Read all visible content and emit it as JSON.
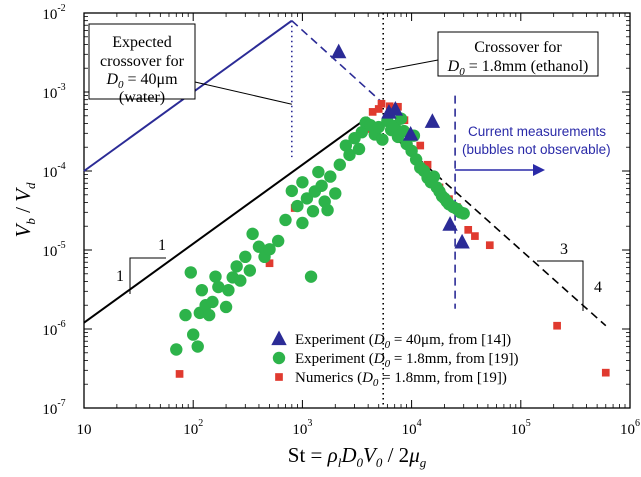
{
  "chart_data": {
    "type": "scatter",
    "title": "",
    "xlabel": "St = ρ_l D_0 V_0 / 2μ_g",
    "ylabel": "V_b / V_d",
    "x_scale": "log",
    "y_scale": "log",
    "xlim": [
      10,
      1000000
    ],
    "ylim": [
      1e-07,
      0.01
    ],
    "grid": false,
    "legend_position": "bottom-right",
    "x_ticks": [
      {
        "value": 10,
        "base": "10",
        "exp": ""
      },
      {
        "value": 100,
        "base": "10",
        "exp": "2"
      },
      {
        "value": 1000,
        "base": "10",
        "exp": "3"
      },
      {
        "value": 10000,
        "base": "10",
        "exp": "4"
      },
      {
        "value": 100000,
        "base": "10",
        "exp": "5"
      },
      {
        "value": 1000000,
        "base": "10",
        "exp": "6"
      }
    ],
    "y_ticks": [
      {
        "value": 1e-07,
        "base": "10",
        "exp": "-7"
      },
      {
        "value": 1e-06,
        "base": "10",
        "exp": "-6"
      },
      {
        "value": 1e-05,
        "base": "10",
        "exp": "-5"
      },
      {
        "value": 0.0001,
        "base": "10",
        "exp": "-4"
      },
      {
        "value": 0.001,
        "base": "10",
        "exp": "-3"
      },
      {
        "value": 0.01,
        "base": "10",
        "exp": "-2"
      }
    ],
    "series": [
      {
        "name": "Experiment (D0 = 40μm, from [14])",
        "marker": "triangle",
        "color": "#2b2b96",
        "points": [
          [
            2150,
            0.0032
          ],
          [
            6200,
            0.00055
          ],
          [
            7100,
            0.0006
          ],
          [
            9800,
            0.00029
          ],
          [
            15500,
            0.00042
          ],
          [
            22500,
            2.1e-05
          ],
          [
            29000,
            1.25e-05
          ]
        ]
      },
      {
        "name": "Experiment (D0 = 1.8mm, from [19])",
        "marker": "circle",
        "color": "#2db34a",
        "points": [
          [
            70,
            5.5e-07
          ],
          [
            85,
            1.5e-06
          ],
          [
            95,
            5.2e-06
          ],
          [
            100,
            8.5e-07
          ],
          [
            110,
            6e-07
          ],
          [
            115,
            1.6e-06
          ],
          [
            120,
            3.1e-06
          ],
          [
            130,
            2e-06
          ],
          [
            140,
            1.5e-06
          ],
          [
            150,
            2.2e-06
          ],
          [
            160,
            4.6e-06
          ],
          [
            170,
            3.4e-06
          ],
          [
            200,
            1.9e-06
          ],
          [
            210,
            3.1e-06
          ],
          [
            230,
            4.5e-06
          ],
          [
            250,
            6.2e-06
          ],
          [
            270,
            4.1e-06
          ],
          [
            300,
            8.2e-06
          ],
          [
            330,
            5.5e-06
          ],
          [
            350,
            1.6e-05
          ],
          [
            400,
            1.1e-05
          ],
          [
            450,
            8.2e-06
          ],
          [
            500,
            1.02e-05
          ],
          [
            600,
            1.3e-05
          ],
          [
            700,
            2.4e-05
          ],
          [
            800,
            5.6e-05
          ],
          [
            900,
            3.6e-05
          ],
          [
            1000,
            7.2e-05
          ],
          [
            1000,
            2.2e-05
          ],
          [
            1100,
            4.5e-05
          ],
          [
            1200,
            4.6e-06
          ],
          [
            1250,
            3.1e-05
          ],
          [
            1300,
            5.5e-05
          ],
          [
            1400,
            9.7e-05
          ],
          [
            1500,
            6.5e-05
          ],
          [
            1600,
            4.1e-05
          ],
          [
            1700,
            3.2e-05
          ],
          [
            1800,
            8.5e-05
          ],
          [
            2000,
            5.2e-05
          ],
          [
            2200,
            0.00012
          ],
          [
            2500,
            0.00021
          ],
          [
            2700,
            0.00016
          ],
          [
            3000,
            0.00026
          ],
          [
            3300,
            0.00019
          ],
          [
            3500,
            0.00031
          ],
          [
            3800,
            0.00041
          ],
          [
            4200,
            0.00038
          ],
          [
            4600,
            0.00029
          ],
          [
            5000,
            0.00036
          ],
          [
            5400,
            0.00025
          ],
          [
            6000,
            0.00043
          ],
          [
            6500,
            0.00033
          ],
          [
            7000,
            0.00037
          ],
          [
            7500,
            0.00027
          ],
          [
            8000,
            0.00046
          ],
          [
            8500,
            0.00032
          ],
          [
            9000,
            0.00022
          ],
          [
            10000,
            0.00018
          ],
          [
            10500,
            0.00028
          ],
          [
            11000,
            0.00014
          ],
          [
            12000,
            0.00011
          ],
          [
            13000,
            0.0001
          ],
          [
            14000,
            8.2e-05
          ],
          [
            15000,
            7.2e-05
          ],
          [
            16000,
            8.5e-05
          ],
          [
            17000,
            6.2e-05
          ],
          [
            18000,
            5.5e-05
          ],
          [
            19000,
            4.8e-05
          ],
          [
            20000,
            4.5e-05
          ],
          [
            21000,
            4.1e-05
          ],
          [
            22000,
            3.8e-05
          ],
          [
            24000,
            3.5e-05
          ],
          [
            26000,
            3.3e-05
          ],
          [
            28000,
            3e-05
          ],
          [
            30000,
            2.9e-05
          ]
        ]
      },
      {
        "name": "Numerics (D0 = 1.8mm, from [19])",
        "marker": "square",
        "color": "#e03a2f",
        "points": [
          [
            75,
            2.7e-07
          ],
          [
            500,
            6.8e-06
          ],
          [
            850,
            3.4e-05
          ],
          [
            4000,
            0.00034
          ],
          [
            4400,
            0.00056
          ],
          [
            5000,
            0.00061
          ],
          [
            5300,
            0.00071
          ],
          [
            6300,
            0.00066
          ],
          [
            7500,
            0.00065
          ],
          [
            8600,
            0.00044
          ],
          [
            12000,
            0.00021
          ],
          [
            14000,
            0.00012
          ],
          [
            16000,
            8.6e-05
          ],
          [
            18000,
            6.2e-05
          ],
          [
            22000,
            4.4e-05
          ],
          [
            26000,
            3.5e-05
          ],
          [
            33000,
            1.8e-05
          ],
          [
            38000,
            1.5e-05
          ],
          [
            52000,
            1.15e-05
          ],
          [
            215000,
            1.1e-06
          ],
          [
            600000,
            2.8e-07
          ]
        ]
      }
    ],
    "lines": [
      {
        "id": "slope-1-line",
        "style": "solid",
        "color": "#000000",
        "points": [
          [
            10,
            1.2e-06
          ],
          [
            4000,
            0.00048
          ]
        ]
      },
      {
        "id": "slope-minus-3-4-line",
        "style": "dashed",
        "color": "#000000",
        "points": [
          [
            6000,
            0.00032
          ],
          [
            600000,
            1.1e-06
          ]
        ]
      },
      {
        "id": "water-slope-1-line",
        "style": "solid",
        "color": "#2b2b96",
        "points": [
          [
            10,
            0.0001
          ],
          [
            800,
            0.008
          ]
        ]
      },
      {
        "id": "water-descending-line",
        "style": "dashed",
        "color": "#2b2b96",
        "points": [
          [
            800,
            0.008
          ],
          [
            6000,
            0.00064
          ]
        ]
      },
      {
        "id": "water-crossover-line",
        "style": "dotted",
        "color": "#2b2b96",
        "points": [
          [
            800,
            0.008
          ],
          [
            800,
            0.00015
          ]
        ]
      },
      {
        "id": "ethanol-crossover-line",
        "style": "dotted",
        "color": "#000000",
        "points": [
          [
            5500,
            0.01
          ],
          [
            5500,
            1e-07
          ]
        ]
      },
      {
        "id": "current-measurements-line",
        "style": "dashed",
        "color": "#2b2b96",
        "points": [
          [
            25000,
            0.0009
          ],
          [
            25000,
            1.8e-06
          ]
        ]
      }
    ],
    "annotations": {
      "water_box": [
        "Expected",
        "crossover for",
        "= 40μm",
        "(water)"
      ],
      "water_box_symbol": "D",
      "water_box_subscript": "0",
      "ethanol_box": [
        "Crossover for",
        "= 1.8mm (ethanol)"
      ],
      "ethanol_box_symbol": "D",
      "ethanol_box_subscript": "0",
      "current_measurements": [
        "Current measurements",
        "(bubbles not observable)"
      ],
      "slope_left": [
        "1",
        "1"
      ],
      "slope_right": [
        "3",
        "4"
      ]
    },
    "legend": [
      {
        "marker": "triangle",
        "prefix": "Experiment (",
        "symbol": "D",
        "sub": "0",
        "suffix": " = 40μm, from [14])"
      },
      {
        "marker": "circle",
        "prefix": "Experiment (",
        "symbol": "D",
        "sub": "0",
        "suffix": " = 1.8mm, from [19])"
      },
      {
        "marker": "square",
        "prefix": "Numerics (",
        "symbol": "D",
        "sub": "0",
        "suffix": " = 1.8mm, from [19])"
      }
    ]
  }
}
